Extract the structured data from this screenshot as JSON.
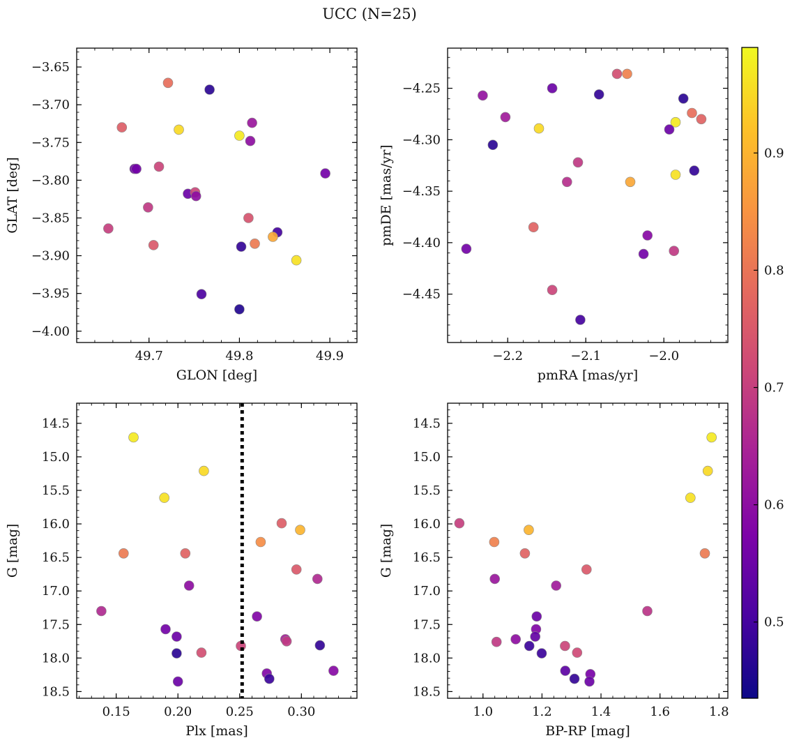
{
  "figure": {
    "title": "UCC (N=25)"
  },
  "colorbar": {
    "colormap": "plasma",
    "range": [
      0.435,
      0.99
    ],
    "ticks": [
      "0.5",
      "0.6",
      "0.7",
      "0.8",
      "0.9"
    ],
    "tick_values": [
      0.5,
      0.6,
      0.7,
      0.8,
      0.9
    ]
  },
  "chart_data": [
    {
      "type": "scatter",
      "id": "glon-glat",
      "xlabel": "GLON [deg]",
      "ylabel": "GLAT [deg]",
      "xlim": [
        49.62,
        49.93
      ],
      "ylim": [
        -4.015,
        -3.625
      ],
      "y_inverted": false,
      "xticks": [
        49.7,
        49.8,
        49.9
      ],
      "xtick_labels": [
        "49.7",
        "49.8",
        "49.9"
      ],
      "yticks": [
        -4.0,
        -3.95,
        -3.9,
        -3.85,
        -3.8,
        -3.75,
        -3.7,
        -3.65
      ],
      "ytick_labels": [
        "−4.00",
        "−3.95",
        "−3.90",
        "−3.85",
        "−3.80",
        "−3.75",
        "−3.70",
        "−3.65"
      ],
      "x": [
        49.721,
        49.767,
        49.67,
        49.733,
        49.8,
        49.814,
        49.812,
        49.684,
        49.711,
        49.895,
        49.743,
        49.751,
        49.752,
        49.699,
        49.655,
        49.81,
        49.842,
        49.705,
        49.802,
        49.817,
        49.837,
        49.863,
        49.758,
        49.8,
        49.686
      ],
      "y": [
        -3.671,
        -3.68,
        -3.73,
        -3.733,
        -3.741,
        -3.724,
        -3.748,
        -3.785,
        -3.782,
        -3.791,
        -3.818,
        -3.816,
        -3.821,
        -3.836,
        -3.864,
        -3.85,
        -3.869,
        -3.886,
        -3.888,
        -3.884,
        -3.875,
        -3.906,
        -3.951,
        -3.971,
        -3.785
      ],
      "prob": [
        0.79,
        0.47,
        0.76,
        0.95,
        0.97,
        0.62,
        0.6,
        0.55,
        0.71,
        0.56,
        0.55,
        0.71,
        0.6,
        0.69,
        0.7,
        0.74,
        0.5,
        0.75,
        0.48,
        0.81,
        0.88,
        0.96,
        0.51,
        0.46,
        0.56
      ]
    },
    {
      "type": "scatter",
      "id": "pmra-pmde",
      "xlabel": "pmRA [mas/yr]",
      "ylabel": "pmDE [mas/yr]",
      "xlim": [
        -2.277,
        -1.918
      ],
      "ylim": [
        -4.497,
        -4.211
      ],
      "y_inverted": false,
      "xticks": [
        -2.2,
        -2.1,
        -2.0
      ],
      "xtick_labels": [
        "−2.2",
        "−2.1",
        "−2.0"
      ],
      "yticks": [
        -4.45,
        -4.4,
        -4.35,
        -4.3,
        -4.25
      ],
      "ytick_labels": [
        "−4.45",
        "−4.40",
        "−4.35",
        "−4.30",
        "−4.25"
      ],
      "x": [
        -2.06,
        -2.047,
        -2.232,
        -2.143,
        -2.083,
        -1.975,
        -2.203,
        -1.964,
        -1.952,
        -1.985,
        -1.993,
        -2.16,
        -2.219,
        -1.985,
        -1.961,
        -2.11,
        -2.124,
        -2.043,
        -2.167,
        -2.021,
        -2.026,
        -1.987,
        -2.253,
        -2.143,
        -2.107
      ],
      "y": [
        -4.236,
        -4.236,
        -4.257,
        -4.25,
        -4.256,
        -4.26,
        -4.278,
        -4.274,
        -4.28,
        -4.283,
        -4.29,
        -4.289,
        -4.305,
        -4.334,
        -4.33,
        -4.322,
        -4.341,
        -4.341,
        -4.385,
        -4.393,
        -4.411,
        -4.408,
        -4.406,
        -4.446,
        -4.475
      ],
      "prob": [
        0.73,
        0.82,
        0.61,
        0.55,
        0.48,
        0.47,
        0.63,
        0.79,
        0.77,
        0.97,
        0.55,
        0.95,
        0.47,
        0.96,
        0.48,
        0.69,
        0.67,
        0.88,
        0.77,
        0.59,
        0.56,
        0.69,
        0.56,
        0.71,
        0.5
      ]
    },
    {
      "type": "scatter",
      "id": "plx-g",
      "xlabel": "Plx [mas]",
      "ylabel": "G [mag]",
      "xlim": [
        0.118,
        0.345
      ],
      "ylim": [
        18.6,
        14.2
      ],
      "y_inverted": true,
      "xticks": [
        0.15,
        0.2,
        0.25,
        0.3
      ],
      "xtick_labels": [
        "0.15",
        "0.20",
        "0.25",
        "0.30"
      ],
      "yticks": [
        14.5,
        15.0,
        15.5,
        16.0,
        16.5,
        17.0,
        17.5,
        18.0,
        18.5
      ],
      "ytick_labels": [
        "14.5",
        "15.0",
        "15.5",
        "16.0",
        "16.5",
        "17.0",
        "17.5",
        "18.0",
        "18.5"
      ],
      "vline": 0.252,
      "x": [
        0.164,
        0.221,
        0.189,
        0.284,
        0.299,
        0.267,
        0.156,
        0.206,
        0.296,
        0.313,
        0.209,
        0.138,
        0.264,
        0.19,
        0.199,
        0.287,
        0.288,
        0.219,
        0.251,
        0.199,
        0.315,
        0.272,
        0.326,
        0.274,
        0.2
      ],
      "y": [
        14.71,
        15.21,
        15.61,
        15.99,
        16.09,
        16.27,
        16.44,
        16.44,
        16.68,
        16.82,
        16.92,
        17.3,
        17.38,
        17.57,
        17.68,
        17.72,
        17.75,
        17.92,
        17.82,
        17.93,
        17.81,
        18.23,
        18.19,
        18.31,
        18.35
      ],
      "prob": [
        0.97,
        0.95,
        0.96,
        0.76,
        0.9,
        0.84,
        0.81,
        0.77,
        0.75,
        0.66,
        0.6,
        0.66,
        0.58,
        0.56,
        0.55,
        0.64,
        0.69,
        0.73,
        0.71,
        0.47,
        0.48,
        0.58,
        0.59,
        0.49,
        0.55
      ]
    },
    {
      "type": "scatter",
      "id": "bprp-g",
      "xlabel": "BP-RP [mag]",
      "ylabel": "G [mag]",
      "xlim": [
        0.88,
        1.83
      ],
      "ylim": [
        18.6,
        14.2
      ],
      "y_inverted": true,
      "xticks": [
        1.0,
        1.2,
        1.4,
        1.6,
        1.8
      ],
      "xtick_labels": [
        "1.0",
        "1.2",
        "1.4",
        "1.6",
        "1.8"
      ],
      "yticks": [
        14.5,
        15.0,
        15.5,
        16.0,
        16.5,
        17.0,
        17.5,
        18.0,
        18.5
      ],
      "ytick_labels": [
        "14.5",
        "15.0",
        "15.5",
        "16.0",
        "16.5",
        "17.0",
        "17.5",
        "18.0",
        "18.5"
      ],
      "x": [
        1.775,
        1.762,
        1.703,
        0.92,
        1.155,
        1.038,
        1.752,
        1.142,
        1.351,
        1.04,
        1.248,
        1.557,
        1.182,
        1.18,
        1.177,
        1.111,
        1.046,
        1.278,
        1.157,
        1.199,
        1.319,
        1.279,
        1.364,
        1.31,
        1.361
      ],
      "y": [
        14.71,
        15.21,
        15.61,
        15.99,
        16.09,
        16.27,
        16.44,
        16.44,
        16.68,
        16.82,
        16.92,
        17.3,
        17.38,
        17.57,
        17.68,
        17.72,
        17.76,
        17.82,
        17.82,
        17.93,
        17.92,
        18.19,
        18.24,
        18.31,
        18.35
      ],
      "prob": [
        0.97,
        0.95,
        0.96,
        0.7,
        0.9,
        0.82,
        0.81,
        0.77,
        0.75,
        0.62,
        0.63,
        0.68,
        0.55,
        0.58,
        0.54,
        0.6,
        0.69,
        0.71,
        0.49,
        0.49,
        0.72,
        0.53,
        0.57,
        0.48,
        0.55
      ]
    }
  ]
}
